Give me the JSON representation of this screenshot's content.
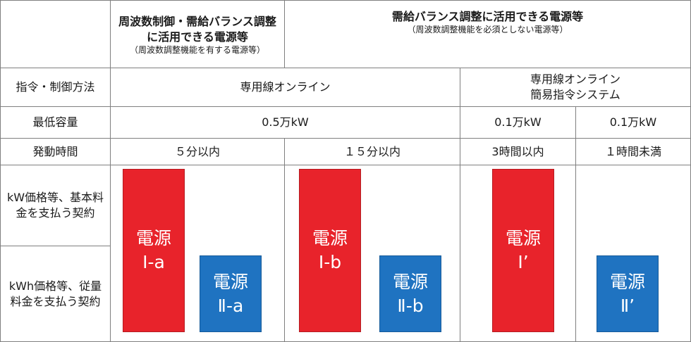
{
  "colors": {
    "red_block": "#e8232b",
    "blue_block": "#1f73c1",
    "grid_line": "#7f7f7f"
  },
  "header": {
    "col1_title": "周波数制御・需給バランス調整に活用できる電源等",
    "col1_note": "（周波数調整機能を有する電源等）",
    "col2_title": "需給バランス調整に活用できる電源等",
    "col2_note": "（周波数調整機能を必須としない電源等）"
  },
  "rows": {
    "method": {
      "label": "指令・制御方法",
      "online": "専用線オンライン",
      "online_simple_1": "専用線オンライン",
      "online_simple_2": "簡易指令システム"
    },
    "capacity": {
      "label": "最低容量",
      "v1": "0.5万kW",
      "v2": "0.1万kW",
      "v3": "0.1万kW"
    },
    "startup": {
      "label": "発動時間",
      "v1": "５分以内",
      "v2": "１５分以内",
      "v3": "3時間以内",
      "v4": "１時間未満"
    },
    "kw_contract": {
      "label": "kW価格等、基本料金を支払う契約"
    },
    "kwh_contract": {
      "label": "kWh価格等、従量料金を支払う契約"
    }
  },
  "blocks": {
    "ia": {
      "line1": "電源",
      "line2": "Ⅰ-a"
    },
    "iia": {
      "line1": "電源",
      "line2": "Ⅱ-a"
    },
    "ib": {
      "line1": "電源",
      "line2": "Ⅰ-b"
    },
    "iib": {
      "line1": "電源",
      "line2": "Ⅱ-b"
    },
    "ip": {
      "line1": "電源",
      "line2": "Ⅰ’"
    },
    "iip": {
      "line1": "電源",
      "line2": "Ⅱ’"
    }
  }
}
